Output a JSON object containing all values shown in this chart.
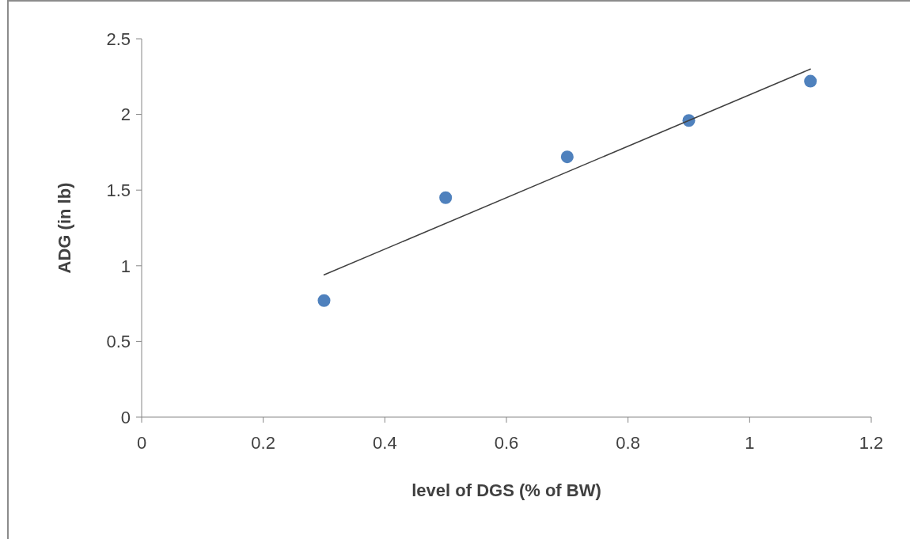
{
  "chart_data": {
    "type": "scatter",
    "xlabel": "level of DGS (% of BW)",
    "ylabel": "ADG (in lb)",
    "xlim": [
      0,
      1.2
    ],
    "ylim": [
      0,
      2.5
    ],
    "xticks": [
      0,
      0.2,
      0.4,
      0.6,
      0.8,
      1,
      1.2
    ],
    "yticks": [
      0,
      0.5,
      1,
      1.5,
      2,
      2.5
    ],
    "series": [
      {
        "color": "#4f81bd",
        "marker": "circle",
        "x": [
          0.3,
          0.5,
          0.7,
          0.9,
          1.1
        ],
        "values": [
          0.77,
          1.45,
          1.72,
          1.96,
          2.22
        ]
      },
      {
        "type": "line",
        "marker": "none",
        "color": "#404040",
        "x": [
          0.3,
          1.1
        ],
        "values": [
          0.94,
          2.3
        ]
      }
    ]
  }
}
